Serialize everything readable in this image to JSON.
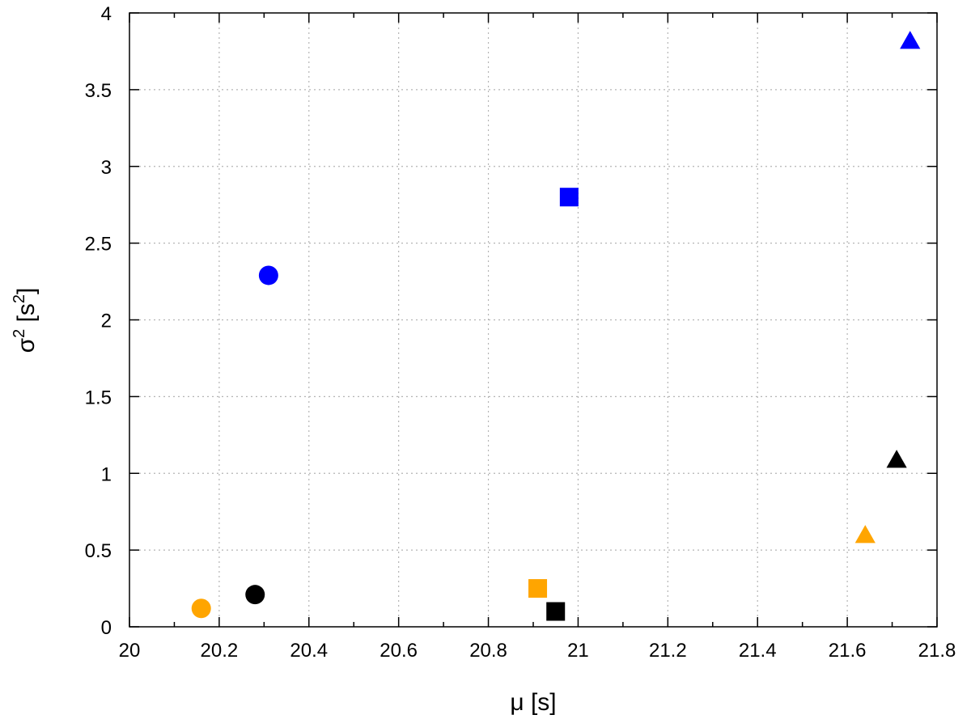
{
  "chart_data": {
    "type": "scatter",
    "title": "",
    "xlabel": "μ [s]",
    "ylabel_base": "σ",
    "ylabel_sup": "2",
    "ylabel_unit_open": " [s",
    "ylabel_unit_sup": "2",
    "ylabel_unit_close": "]",
    "xlim": [
      20,
      21.8
    ],
    "ylim": [
      0,
      4
    ],
    "x_ticks": [
      20,
      20.2,
      20.4,
      20.6,
      20.8,
      21,
      21.2,
      21.4,
      21.6,
      21.8
    ],
    "x_tick_labels": [
      "20",
      "20.2",
      "20.4",
      "20.6",
      "20.8",
      "21",
      "21.2",
      "21.4",
      "21.6",
      "21.8"
    ],
    "x_minor_ticks": [
      20.1,
      20.3,
      20.5,
      20.7,
      20.9,
      21.1,
      21.3,
      21.5,
      21.7
    ],
    "y_ticks": [
      0,
      0.5,
      1,
      1.5,
      2,
      2.5,
      3,
      3.5,
      4
    ],
    "y_tick_labels": [
      "0",
      "0.5",
      "1",
      "1.5",
      "2",
      "2.5",
      "3",
      "3.5",
      "4"
    ],
    "grid": true,
    "legend": "none",
    "points": [
      {
        "x": 20.16,
        "y": 0.12,
        "marker": "circle",
        "color": "#ffa500"
      },
      {
        "x": 20.28,
        "y": 0.21,
        "marker": "circle",
        "color": "#000000"
      },
      {
        "x": 20.31,
        "y": 2.29,
        "marker": "circle",
        "color": "#0000ff"
      },
      {
        "x": 20.91,
        "y": 0.25,
        "marker": "square",
        "color": "#ffa500"
      },
      {
        "x": 20.95,
        "y": 0.1,
        "marker": "square",
        "color": "#000000"
      },
      {
        "x": 20.98,
        "y": 2.8,
        "marker": "square",
        "color": "#0000ff"
      },
      {
        "x": 21.64,
        "y": 0.6,
        "marker": "triangle",
        "color": "#ffa500"
      },
      {
        "x": 21.71,
        "y": 1.09,
        "marker": "triangle",
        "color": "#000000"
      },
      {
        "x": 21.74,
        "y": 3.82,
        "marker": "triangle",
        "color": "#0000ff"
      }
    ]
  }
}
